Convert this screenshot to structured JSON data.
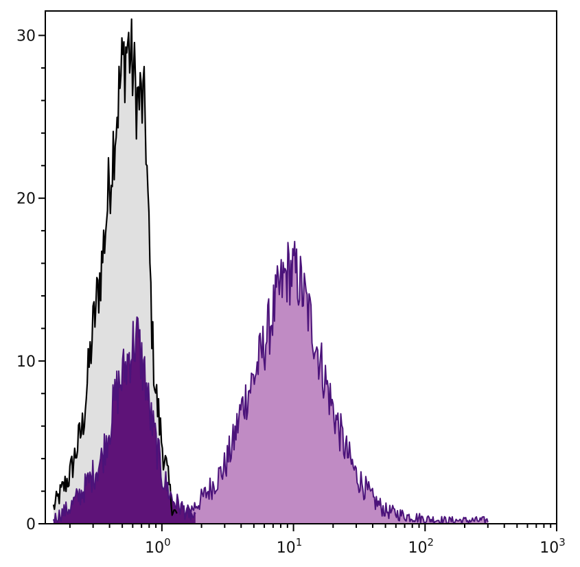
{
  "chart_data": {
    "type": "area",
    "title": "",
    "xlabel": "",
    "ylabel": "",
    "x_scale": "log",
    "xlim": [
      0.13,
      1000
    ],
    "ylim": [
      0,
      31.5
    ],
    "x_ticks": [
      {
        "value": 1,
        "base": "10",
        "exp": "0"
      },
      {
        "value": 10,
        "base": "10",
        "exp": "1"
      },
      {
        "value": 100,
        "base": "10",
        "exp": "2"
      },
      {
        "value": 1000,
        "base": "10",
        "exp": "3"
      }
    ],
    "y_ticks": [
      {
        "value": 0,
        "label": "0"
      },
      {
        "value": 10,
        "label": "10"
      },
      {
        "value": 20,
        "label": "20"
      },
      {
        "value": 30,
        "label": "30"
      }
    ],
    "grid": false,
    "legend": "none",
    "colors": {
      "control_line": "#000000",
      "control_fill": "#e0e0e0",
      "stained_line": "#4b137a",
      "stained_fill_dark": "#5e1378",
      "stained_fill_light": "#c08bc4"
    },
    "series": [
      {
        "x": [
          0.15,
          0.2,
          0.25,
          0.3,
          0.35,
          0.4,
          0.45,
          0.5,
          0.55,
          0.6,
          0.65,
          0.7,
          0.75,
          0.8,
          0.85,
          0.9,
          1.0,
          1.1,
          1.2,
          1.3
        ],
        "values": [
          1,
          3,
          6,
          12,
          16,
          21,
          25,
          28,
          29.5,
          28,
          26,
          26,
          25,
          17,
          11,
          8,
          5,
          3,
          1,
          0.5
        ]
      },
      {
        "x": [
          0.15,
          0.2,
          0.25,
          0.3,
          0.35,
          0.4,
          0.45,
          0.5,
          0.55,
          0.6,
          0.65,
          0.7,
          0.75,
          0.8,
          0.9,
          1.0,
          1.2,
          1.5,
          1.8
        ],
        "values": [
          0.3,
          1,
          2,
          3,
          4,
          6,
          8,
          9,
          10,
          11,
          11.5,
          10,
          9,
          7,
          5,
          3,
          1.5,
          0.8,
          0.3
        ]
      },
      {
        "x": [
          1.5,
          2,
          2.5,
          3,
          3.5,
          4,
          5,
          6,
          7,
          8,
          9,
          10,
          11,
          12,
          14,
          16,
          20,
          25,
          30,
          40,
          50,
          70,
          100,
          150,
          200,
          300
        ],
        "values": [
          0.5,
          1.5,
          2.5,
          3.5,
          5,
          7,
          9,
          11,
          13,
          14.5,
          15.5,
          15.5,
          15,
          14,
          12,
          10,
          7,
          4.5,
          3,
          1.5,
          0.8,
          0.5,
          0.3,
          0.2,
          0.2,
          0.2
        ]
      }
    ]
  }
}
